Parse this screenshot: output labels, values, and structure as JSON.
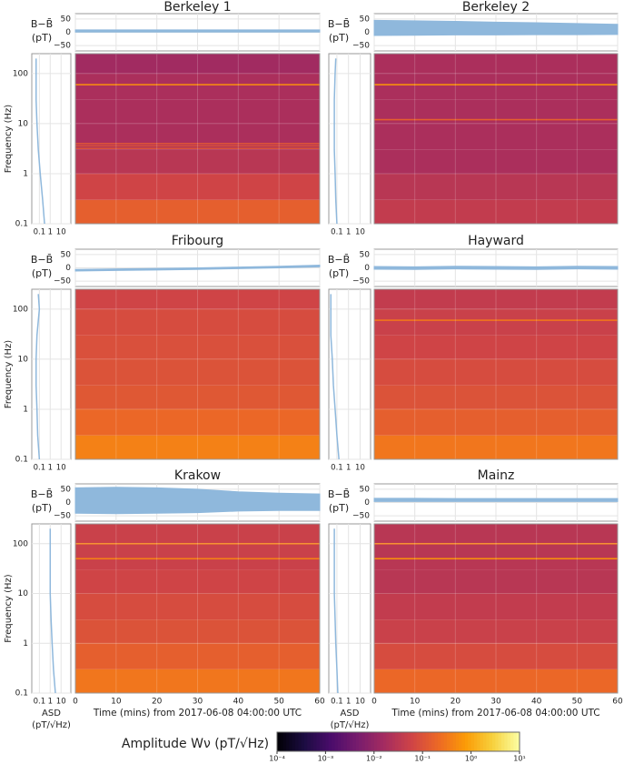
{
  "chart_data": [
    {
      "type": "spectrogram",
      "title": "Berkeley 1",
      "color": "#8fb8dc",
      "grid": true,
      "ts_ylabel": "B−B̄",
      "ts_yunit": "(pT)",
      "ts_ylim": [
        -70,
        70
      ],
      "ts_yticks": [
        50,
        0,
        {
          "value": -50,
          "label": "−50"
        }
      ],
      "ts_x": [
        0,
        10,
        20,
        30,
        40,
        50,
        60
      ],
      "ts_upper": [
        9,
        9,
        9,
        9,
        9,
        9,
        9
      ],
      "ts_lower": [
        1,
        1,
        1,
        1,
        1,
        1,
        1
      ],
      "asd_xlim": [
        0.02,
        80
      ],
      "asd_xticks": [
        0.1,
        1,
        10
      ],
      "asd_freq": [
        0.1,
        0.3,
        1,
        3,
        10,
        30,
        100,
        200
      ],
      "asd_values": [
        0.3,
        0.2,
        0.12,
        0.08,
        0.06,
        0.05,
        0.05,
        0.05
      ],
      "ylabel": "Frequency (Hz)",
      "ylim": [
        0.1,
        250
      ],
      "yticks": [
        0.1,
        1,
        10,
        100
      ],
      "ytick_labels": true,
      "xlim": [
        0,
        60
      ],
      "xticks": [
        0,
        10,
        20,
        30,
        40,
        50,
        60
      ],
      "xtick_labels": false,
      "freq_edges": [
        0.1,
        0.3,
        1,
        3,
        10,
        30,
        100,
        250
      ],
      "amplitude": [
        0.15,
        0.06,
        0.03,
        0.02,
        0.02,
        0.02,
        0.015
      ],
      "line_freqs": [
        60,
        4,
        3.6,
        3.2
      ],
      "line_amplitudes": [
        0.5,
        0.1,
        0.1,
        0.1
      ]
    },
    {
      "type": "spectrogram",
      "title": "Berkeley 2",
      "color": "#8fb8dc",
      "grid": true,
      "ts_ylabel": "B−B̄",
      "ts_yunit": "(pT)",
      "ts_ylim": [
        -70,
        70
      ],
      "ts_yticks": [
        50,
        0,
        {
          "value": -50,
          "label": "−50"
        }
      ],
      "ts_x": [
        0,
        10,
        20,
        30,
        40,
        50,
        60
      ],
      "ts_upper": [
        45,
        43,
        41,
        38,
        36,
        33,
        30
      ],
      "ts_lower": [
        -12,
        -11,
        -10,
        -10,
        -9,
        -9,
        -8
      ],
      "asd_xlim": [
        0.02,
        80
      ],
      "asd_xticks": [
        0.1,
        1,
        10
      ],
      "asd_freq": [
        0.1,
        0.3,
        1,
        3,
        10,
        30,
        100,
        200
      ],
      "asd_values": [
        0.1,
        0.08,
        0.07,
        0.06,
        0.06,
        0.06,
        0.07,
        0.08
      ],
      "ylim": [
        0.1,
        250
      ],
      "yticks": [
        0.1,
        1,
        10,
        100
      ],
      "ytick_labels": false,
      "xlim": [
        0,
        60
      ],
      "xticks": [
        0,
        10,
        20,
        30,
        40,
        50,
        60
      ],
      "xtick_labels": false,
      "freq_edges": [
        0.1,
        0.3,
        1,
        3,
        10,
        30,
        100,
        250
      ],
      "amplitude": [
        0.04,
        0.03,
        0.02,
        0.02,
        0.02,
        0.02,
        0.02
      ],
      "line_freqs": [
        60,
        12
      ],
      "line_amplitudes": [
        0.6,
        0.15
      ]
    },
    {
      "type": "spectrogram",
      "title": "Fribourg",
      "color": "#8fb8dc",
      "grid": true,
      "ts_ylabel": "B−B̄",
      "ts_yunit": "(pT)",
      "ts_ylim": [
        -70,
        70
      ],
      "ts_yticks": [
        50,
        0,
        {
          "value": -50,
          "label": "−50"
        }
      ],
      "ts_x": [
        0,
        10,
        20,
        30,
        40,
        50,
        60
      ],
      "ts_upper": [
        -6,
        -4,
        -2,
        0,
        3,
        6,
        10
      ],
      "ts_lower": [
        -12,
        -10,
        -8,
        -6,
        -3,
        0,
        4
      ],
      "asd_xlim": [
        0.02,
        80
      ],
      "asd_xticks": [
        0.1,
        1,
        10
      ],
      "asd_freq": [
        0.1,
        0.3,
        1,
        3,
        10,
        30,
        100,
        200
      ],
      "asd_values": [
        0.1,
        0.07,
        0.06,
        0.05,
        0.05,
        0.06,
        0.1,
        0.08
      ],
      "ylabel": "Frequency (Hz)",
      "ylim": [
        0.1,
        250
      ],
      "yticks": [
        0.1,
        1,
        10,
        100
      ],
      "ytick_labels": true,
      "xlim": [
        0,
        60
      ],
      "xticks": [
        0,
        10,
        20,
        30,
        40,
        50,
        60
      ],
      "xtick_labels": false,
      "freq_edges": [
        0.1,
        0.3,
        1,
        3,
        10,
        30,
        100,
        250
      ],
      "amplitude": [
        0.4,
        0.2,
        0.12,
        0.1,
        0.09,
        0.08,
        0.06
      ],
      "line_freqs": [],
      "line_amplitudes": []
    },
    {
      "type": "spectrogram",
      "title": "Hayward",
      "color": "#8fb8dc",
      "grid": true,
      "ts_ylabel": "B−B̄",
      "ts_yunit": "(pT)",
      "ts_ylim": [
        -70,
        70
      ],
      "ts_yticks": [
        50,
        0,
        {
          "value": -50,
          "label": "−50"
        }
      ],
      "ts_x": [
        0,
        10,
        20,
        30,
        40,
        50,
        60
      ],
      "ts_upper": [
        5,
        4,
        6,
        5,
        4,
        6,
        5
      ],
      "ts_lower": [
        -5,
        -6,
        -4,
        -5,
        -6,
        -4,
        -5
      ],
      "asd_xlim": [
        0.02,
        80
      ],
      "asd_xticks": [
        0.1,
        1,
        10
      ],
      "asd_freq": [
        0.1,
        0.3,
        1,
        3,
        10,
        30,
        100,
        200
      ],
      "asd_values": [
        0.15,
        0.1,
        0.07,
        0.05,
        0.04,
        0.03,
        0.03,
        0.03
      ],
      "ylim": [
        0.1,
        250
      ],
      "yticks": [
        0.1,
        1,
        10,
        100
      ],
      "ytick_labels": false,
      "xlim": [
        0,
        60
      ],
      "xticks": [
        0,
        10,
        20,
        30,
        40,
        50,
        60
      ],
      "xtick_labels": false,
      "freq_edges": [
        0.1,
        0.3,
        1,
        3,
        10,
        30,
        100,
        250
      ],
      "amplitude": [
        0.3,
        0.15,
        0.1,
        0.08,
        0.06,
        0.05,
        0.04
      ],
      "line_freqs": [
        60
      ],
      "line_amplitudes": [
        0.3
      ]
    },
    {
      "type": "spectrogram",
      "title": "Krakow",
      "color": "#8fb8dc",
      "grid": true,
      "ts_ylabel": "B−B̄",
      "ts_yunit": "(pT)",
      "ts_ylim": [
        -70,
        70
      ],
      "ts_yticks": [
        50,
        0,
        {
          "value": -50,
          "label": "−50"
        }
      ],
      "ts_x": [
        0,
        10,
        20,
        30,
        40,
        50,
        60
      ],
      "ts_upper": [
        55,
        57,
        55,
        50,
        40,
        35,
        32
      ],
      "ts_lower": [
        -40,
        -42,
        -40,
        -38,
        -32,
        -30,
        -30
      ],
      "asd_xlim": [
        0.02,
        80
      ],
      "asd_xticks": [
        0.1,
        1,
        10
      ],
      "asd_freq": [
        0.1,
        0.3,
        1,
        3,
        10,
        30,
        100,
        200
      ],
      "asd_values": [
        3,
        2,
        1.5,
        1.2,
        1,
        1,
        1,
        1
      ],
      "asd_xlabel": "ASD",
      "asd_xunit": "(pT/√Hz)",
      "ylabel": "Frequency (Hz)",
      "ylim": [
        0.1,
        250
      ],
      "yticks": [
        0.1,
        1,
        10,
        100
      ],
      "ytick_labels": true,
      "xlabel": "Time (mins) from 2017-06-08 04:00:00 UTC",
      "xlim": [
        0,
        60
      ],
      "xticks": [
        0,
        10,
        20,
        30,
        40,
        50,
        60
      ],
      "xtick_labels": true,
      "freq_edges": [
        0.1,
        0.3,
        1,
        3,
        10,
        30,
        100,
        250
      ],
      "amplitude": [
        0.3,
        0.15,
        0.1,
        0.08,
        0.06,
        0.05,
        0.05
      ],
      "line_freqs": [
        100,
        50
      ],
      "line_amplitudes": [
        0.4,
        0.4
      ]
    },
    {
      "type": "spectrogram",
      "title": "Mainz",
      "color": "#8fb8dc",
      "grid": true,
      "ts_ylabel": "B−B̄",
      "ts_yunit": "(pT)",
      "ts_ylim": [
        -70,
        70
      ],
      "ts_yticks": [
        50,
        0,
        {
          "value": -50,
          "label": "−50"
        }
      ],
      "ts_x": [
        0,
        10,
        20,
        30,
        40,
        50,
        60
      ],
      "ts_upper": [
        16,
        16,
        15,
        15,
        15,
        15,
        15
      ],
      "ts_lower": [
        4,
        4,
        4,
        4,
        4,
        4,
        4
      ],
      "asd_xlim": [
        0.02,
        80
      ],
      "asd_xticks": [
        0.1,
        1,
        10
      ],
      "asd_freq": [
        0.1,
        0.3,
        1,
        3,
        10,
        30,
        100,
        200
      ],
      "asd_values": [
        0.12,
        0.1,
        0.08,
        0.07,
        0.06,
        0.06,
        0.06,
        0.06
      ],
      "asd_xlabel": "ASD",
      "asd_xunit": "(pT/√Hz)",
      "ylim": [
        0.1,
        250
      ],
      "yticks": [
        0.1,
        1,
        10,
        100
      ],
      "ytick_labels": false,
      "xlabel": "Time (mins) from 2017-06-08 04:00:00 UTC",
      "xlim": [
        0,
        60
      ],
      "xticks": [
        0,
        10,
        20,
        30,
        40,
        50,
        60
      ],
      "xtick_labels": true,
      "freq_edges": [
        0.1,
        0.3,
        1,
        3,
        10,
        30,
        100,
        250
      ],
      "amplitude": [
        0.2,
        0.08,
        0.05,
        0.04,
        0.03,
        0.03,
        0.03
      ],
      "line_freqs": [
        100,
        50
      ],
      "line_amplitudes": [
        0.4,
        0.6
      ]
    },
    {
      "type": "colorbar",
      "label": "Amplitude Wν (pT/√Hz)",
      "log_scale": true,
      "lim": [
        0.0001,
        10
      ],
      "ticks": [
        {
          "value": 0.0001,
          "label": "10⁻⁴"
        },
        {
          "value": 0.001,
          "label": "10⁻³"
        },
        {
          "value": 0.01,
          "label": "10⁻²"
        },
        {
          "value": 0.1,
          "label": "10⁻¹"
        },
        {
          "value": 1,
          "label": "10⁰"
        },
        {
          "value": 10,
          "label": "10¹"
        }
      ],
      "colormap": [
        "#000004",
        "#1b0c41",
        "#4a0c6b",
        "#781c6d",
        "#a52c60",
        "#cf4446",
        "#ed6925",
        "#fb9b06",
        "#f7d13d",
        "#fcffa4"
      ]
    }
  ]
}
